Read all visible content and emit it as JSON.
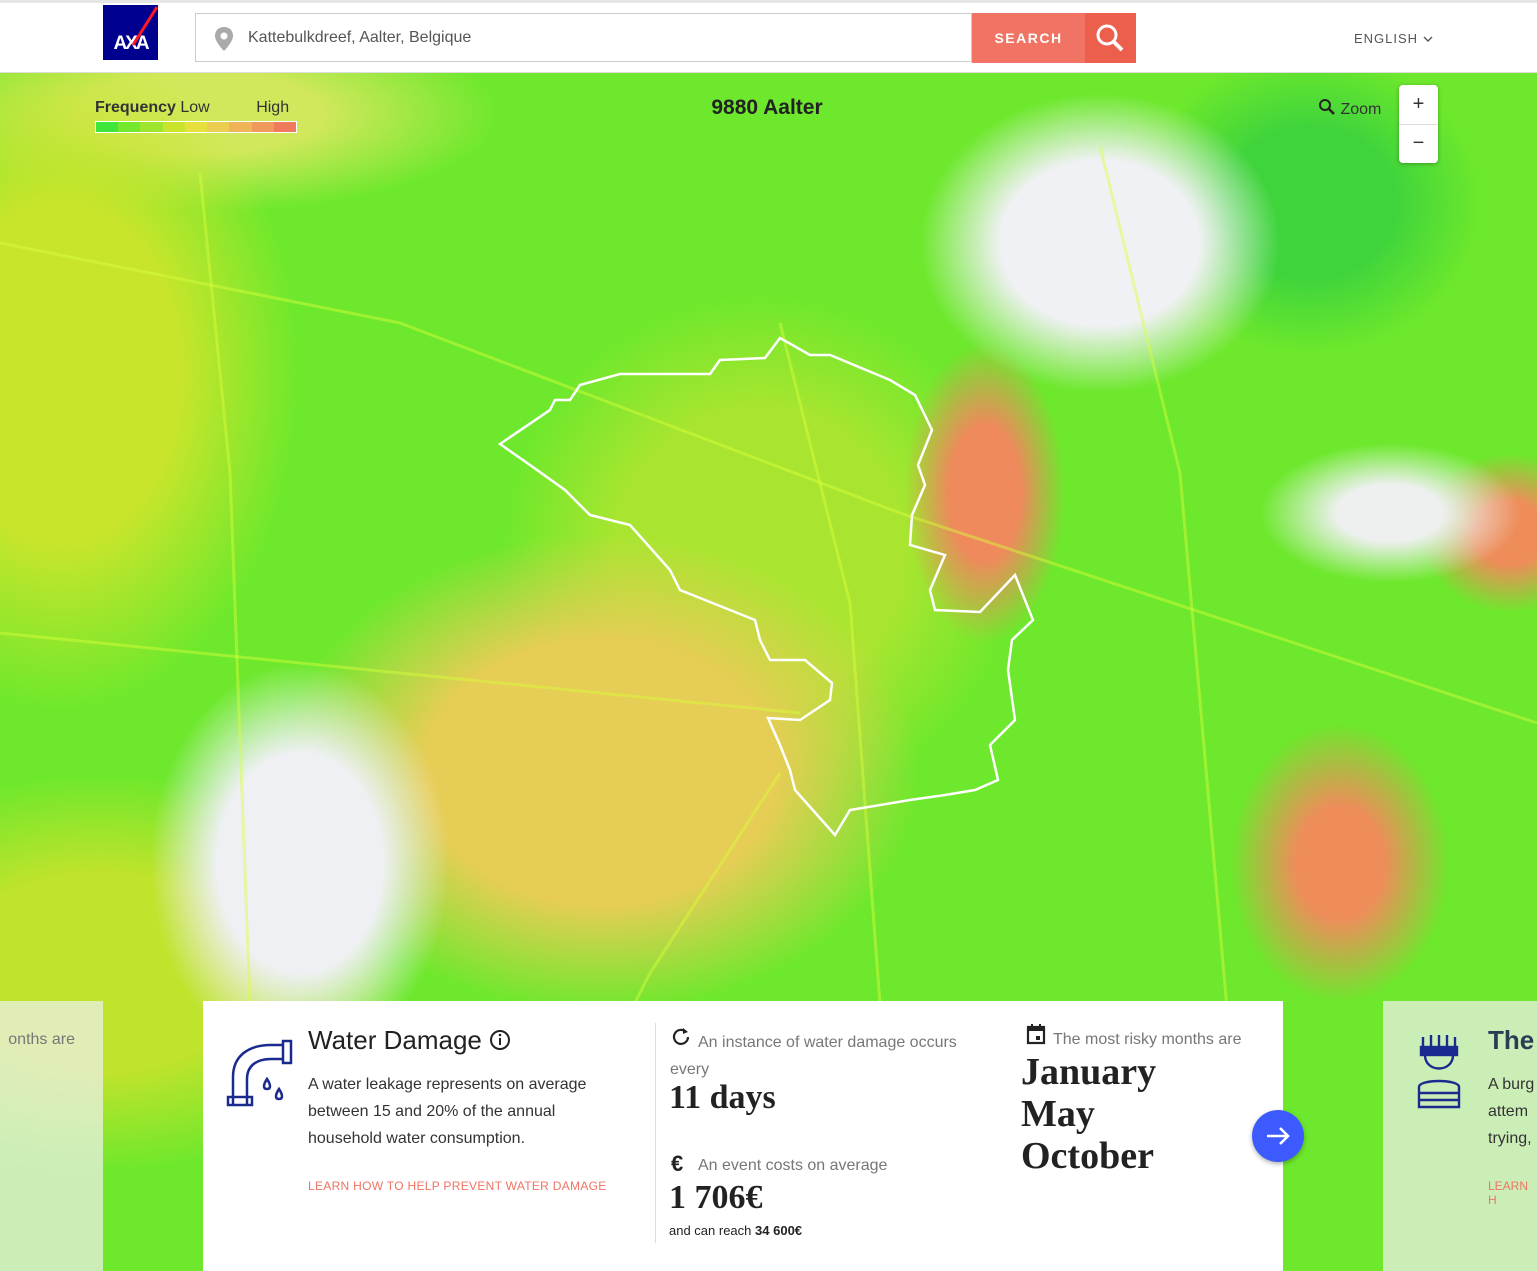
{
  "header": {
    "logo": "AXA",
    "search_value": "Kattebulkdreef, Aalter, Belgique",
    "search_button": "SEARCH",
    "language": "ENGLISH"
  },
  "map": {
    "legend": {
      "title": "Frequency",
      "low": "Low",
      "high": "High"
    },
    "location": "9880 Aalter",
    "zoom": {
      "label": "Zoom",
      "in": "+",
      "out": "−"
    }
  },
  "cards": {
    "previous": {
      "text": "onths are"
    },
    "current": {
      "title": "Water Damage",
      "description": "A water leakage represents on average between 15 and 20% of the annual household water consumption.",
      "link": "LEARN HOW TO HELP PREVENT WATER DAMAGE",
      "frequency_label": "An instance of water damage occurs every",
      "frequency_value": "11 days",
      "cost_label": "An event costs on average",
      "cost_value": "1 706€",
      "max_label": "and can reach",
      "max_value": "34 600€",
      "months_label": "The most risky months are",
      "months": [
        "January",
        "May",
        "October"
      ]
    },
    "next": {
      "title": "The",
      "lines": [
        "A burg",
        "attem",
        "trying,"
      ],
      "link": "LEARN H"
    }
  }
}
